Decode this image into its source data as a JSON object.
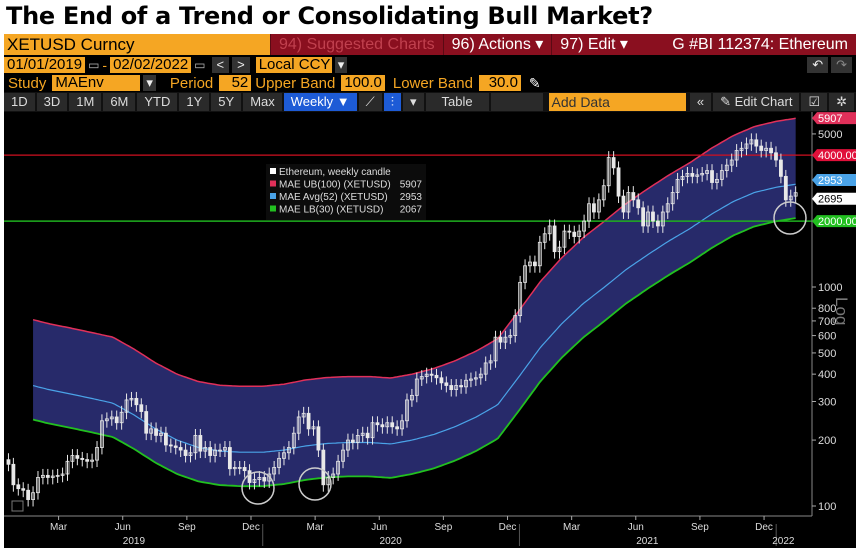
{
  "title": "The End of a Trend or Consolidating Bull Market?",
  "toolbar": {
    "ticker": "XETUSD Curncy",
    "suggested": "94) Suggested Charts",
    "actions": "96) Actions ▾",
    "edit": "97) Edit ▾",
    "chart_id": "G #BI 112374: Ethereum",
    "start_date": "01/01/2019",
    "dash": "-",
    "end_date": "02/02/2022",
    "prev": "<",
    "next": ">",
    "currency": "Local CCY",
    "dropdown": "▾",
    "undo": "↶",
    "redo": "↷",
    "study_label": "Study",
    "study": "MAEnv",
    "period_label": "Period",
    "period": "52",
    "upper_label": "Upper Band",
    "upper": "100.0",
    "lower_label": "Lower Band",
    "lower": "30.0",
    "pencil": "✎",
    "ranges": [
      "1D",
      "3D",
      "1M",
      "6M",
      "YTD",
      "1Y",
      "5Y",
      "Max"
    ],
    "frequency": "Weekly ▼",
    "line_icon": "⟋",
    "bar_icon": "⫶",
    "more": "▾",
    "table": "Table",
    "add_data": "Add Data",
    "collapse": "«",
    "edit_chart": "✎ Edit Chart",
    "annot": "☑",
    "settings": "✲"
  },
  "colors": {
    "band_fill": "#272a6a",
    "upper": "#e0305a",
    "avg": "#4aa3e8",
    "lower": "#22c020",
    "hline_4000": "#d01020",
    "hline_2000": "#1fb01f"
  },
  "chart_data": {
    "type": "line",
    "scale": "log",
    "ylabel": "Log",
    "ylim": [
      90,
      6500
    ],
    "y_ticks": [
      5000,
      1000,
      800,
      700,
      600,
      500,
      400,
      300,
      200,
      100
    ],
    "x_month_ticks": [
      "Mar",
      "Jun",
      "Sep",
      "Dec",
      "Mar",
      "Jun",
      "Sep",
      "Dec",
      "Mar",
      "Jun",
      "Sep",
      "Dec"
    ],
    "x_years": [
      "2019",
      "2020",
      "2021",
      "2022"
    ],
    "legend": {
      "title": "Ethereum, weekly candle",
      "items": [
        {
          "name": "MAE UB(100) (XETUSD)",
          "value": "5907"
        },
        {
          "name": "MAE Avg(52) (XETUSD)",
          "value": "2953"
        },
        {
          "name": "MAE LB(30) (XETUSD)",
          "value": "2067"
        }
      ]
    },
    "price_tags": [
      {
        "label": "5907",
        "value": 5907,
        "color": "#e0305a"
      },
      {
        "label": "4000.00",
        "value": 4000,
        "color": "#e0103a"
      },
      {
        "label": "2953",
        "value": 2953,
        "color": "#4aa3e8"
      },
      {
        "label": "2695",
        "value": 2695,
        "color": "#ffffff"
      },
      {
        "label": "2000.00",
        "value": 2000,
        "color": "#22c020"
      }
    ],
    "horizontal_lines": [
      4000,
      2000
    ],
    "band_multipliers": {
      "upper": 2.0,
      "lower": 0.7
    },
    "ma52_monthly": [
      376,
      360,
      340,
      325,
      310,
      295,
      260,
      225,
      200,
      185,
      178,
      176,
      176,
      180,
      188,
      193,
      195,
      195,
      192,
      200,
      212,
      230,
      255,
      290,
      390,
      530,
      680,
      840,
      1000,
      1200,
      1400,
      1620,
      1850,
      2150,
      2450,
      2700,
      2850,
      2953
    ],
    "weekly_close": [
      155,
      125,
      120,
      118,
      107,
      115,
      135,
      138,
      135,
      137,
      138,
      140,
      160,
      170,
      165,
      163,
      160,
      162,
      185,
      245,
      250,
      255,
      240,
      268,
      305,
      310,
      290,
      270,
      215,
      225,
      210,
      215,
      190,
      188,
      185,
      180,
      170,
      175,
      210,
      178,
      185,
      170,
      180,
      180,
      185,
      148,
      150,
      150,
      145,
      128,
      132,
      135,
      130,
      140,
      150,
      165,
      175,
      185,
      215,
      255,
      265,
      225,
      230,
      180,
      125,
      135,
      140,
      160,
      180,
      200,
      195,
      210,
      215,
      205,
      240,
      235,
      230,
      240,
      230,
      225,
      245,
      305,
      320,
      380,
      390,
      400,
      395,
      385,
      365,
      355,
      340,
      355,
      350,
      375,
      380,
      385,
      400,
      450,
      460,
      590,
      560,
      590,
      600,
      740,
      1050,
      1250,
      1300,
      1250,
      1600,
      1750,
      1900,
      1450,
      1520,
      1800,
      1780,
      1700,
      1800,
      2000,
      2400,
      2200,
      2500,
      2900,
      3900,
      3500,
      2600,
      2200,
      2700,
      2500,
      2300,
      1900,
      2200,
      2000,
      1900,
      2200,
      2400,
      2700,
      3100,
      3200,
      3300,
      3200,
      3250,
      3300,
      3400,
      3000,
      3100,
      3400,
      3600,
      3800,
      4200,
      4300,
      4500,
      4700,
      4400,
      4200,
      4300,
      4100,
      3800,
      3200,
      2500,
      2600,
      2695
    ],
    "highlight_circles": [
      "Dec 2019",
      "Mar 2020",
      "Jan 2022"
    ]
  }
}
